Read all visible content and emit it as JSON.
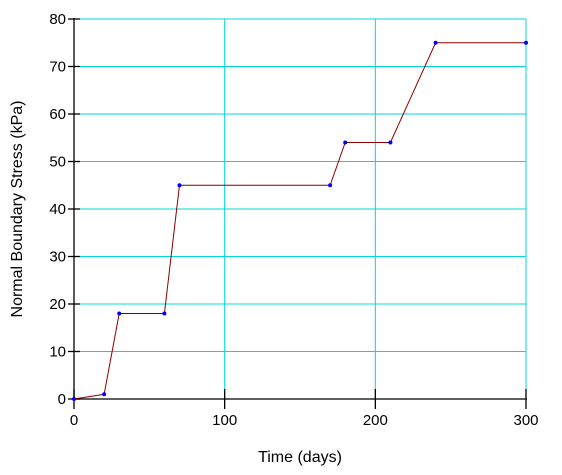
{
  "chart_data": {
    "type": "line",
    "title": "",
    "xlabel": "Time (days)",
    "ylabel": "Normal Boundary Stress (kPa)",
    "xlim": [
      0,
      300
    ],
    "ylim": [
      0,
      80
    ],
    "x_ticks": [
      0,
      100,
      200,
      300
    ],
    "x_tick_labels": [
      "0",
      "100",
      "200",
      "300"
    ],
    "y_ticks": [
      0,
      10,
      20,
      30,
      40,
      50,
      60,
      70,
      80
    ],
    "y_tick_labels": [
      "0",
      "10",
      "20",
      "30",
      "40",
      "50",
      "60",
      "70",
      "80"
    ],
    "grid": true,
    "legend": "none",
    "colors": {
      "grid": "#00d8dc",
      "line": "#8b0000",
      "marker": "#0000ff",
      "axis": "#000000"
    },
    "series": [
      {
        "x": [
          0,
          20,
          30,
          60,
          70,
          170,
          180,
          210,
          240,
          300
        ],
        "y": [
          0,
          1,
          18,
          18,
          45,
          45,
          54,
          54,
          75,
          75
        ]
      }
    ]
  }
}
